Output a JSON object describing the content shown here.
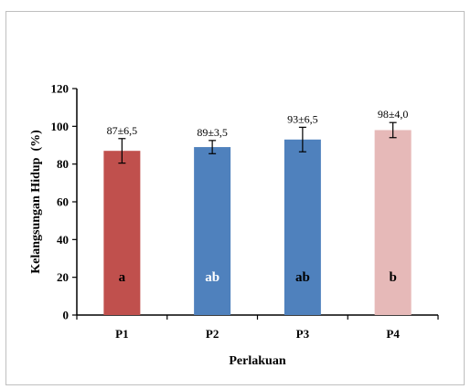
{
  "chart_data": {
    "type": "bar",
    "title": "",
    "xlabel": "Perlakuan",
    "ylabel": "Kelangsungan Hidup  (%)",
    "categories": [
      "P1",
      "P2",
      "P3",
      "P4"
    ],
    "values": [
      87,
      89,
      93,
      98
    ],
    "errors": [
      6.5,
      3.5,
      6.5,
      4.0
    ],
    "data_labels": [
      "87±6,5",
      "89±3,5",
      "93±6,5",
      "98±4,0"
    ],
    "significance_letters": [
      "a",
      "ab",
      "ab",
      "b"
    ],
    "bar_colors": [
      "#c0504d",
      "#4f81bd",
      "#4f81bd",
      "#e6b9b8"
    ],
    "letter_colors": [
      "#000000",
      "#ffffff",
      "#000000",
      "#000000"
    ],
    "ylim": [
      0,
      120
    ],
    "yticks": [
      0,
      20,
      40,
      60,
      80,
      100,
      120
    ],
    "grid": false,
    "legend": "none"
  }
}
